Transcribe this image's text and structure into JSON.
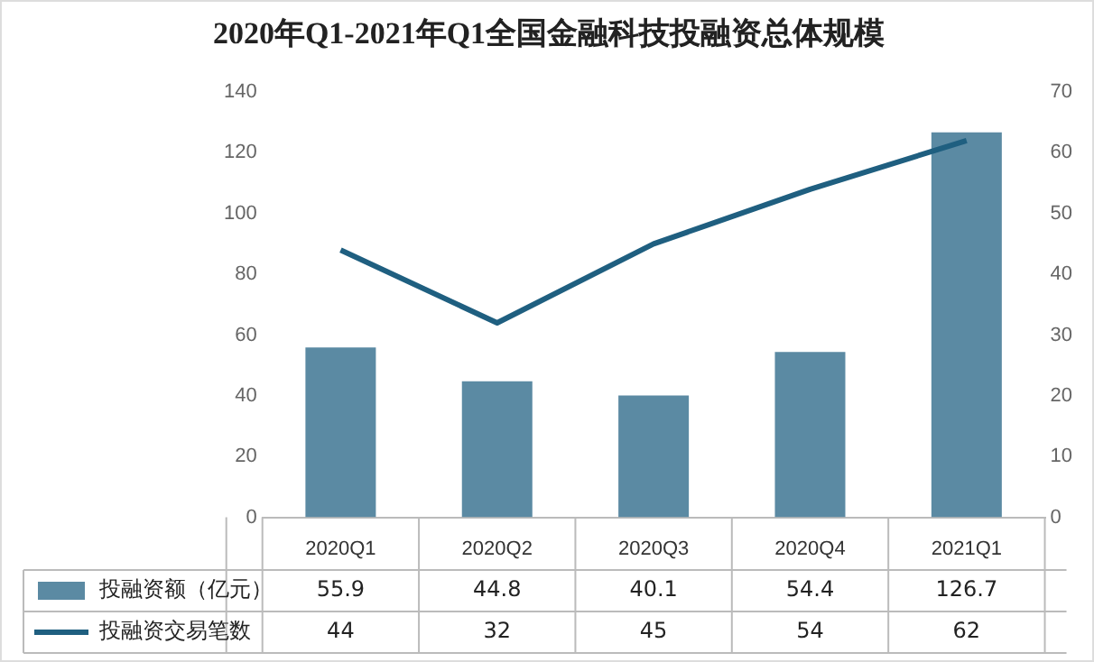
{
  "chart_data": {
    "type": "bar",
    "title": "2020年Q1-2021年Q1全国金融科技投融资总体规模",
    "categories": [
      "2020Q1",
      "2020Q2",
      "2020Q3",
      "2020Q4",
      "2021Q1"
    ],
    "series": [
      {
        "name": "投融资额（亿元）",
        "color": "#5b8aa3",
        "values": [
          55.9,
          44.8,
          40.1,
          54.4,
          126.7
        ]
      },
      {
        "name": "投融资交易笔数",
        "type": "line",
        "axis": "y2",
        "color": "#1f5f80",
        "values": [
          44,
          32,
          45,
          54,
          62
        ]
      }
    ],
    "ylim": [
      0,
      140
    ],
    "yticks": [
      0,
      20,
      40,
      60,
      80,
      100,
      120,
      140
    ],
    "y2lim": [
      0,
      70
    ],
    "y2ticks": [
      0,
      10,
      20,
      30,
      40,
      50,
      60,
      70
    ],
    "legend": "bottom",
    "data_labels": true,
    "marker": "none"
  }
}
